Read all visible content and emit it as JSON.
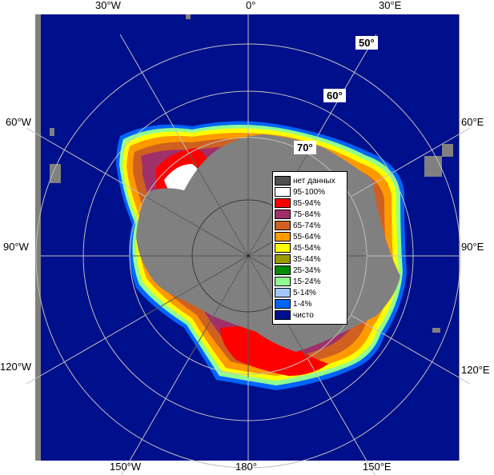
{
  "map": {
    "lon_labels_top": [
      "30°W",
      "0°",
      "30°E"
    ],
    "lon_labels_bottom": [
      "150°W",
      "180°",
      "150°E"
    ],
    "lon_labels_left": [
      "60°W",
      "90°W",
      "120°W"
    ],
    "lon_labels_right": [
      "60°E",
      "90°E",
      "120°E"
    ],
    "lat_labels": [
      "50°",
      "60°",
      "70°"
    ],
    "colors": {
      "ocean": "#000f8c",
      "land_nodata": "#808080",
      "frame": "#808080",
      "grid": "#bfbfbf"
    }
  },
  "legend": {
    "items": [
      {
        "label": "нет данных",
        "color": "#505050"
      },
      {
        "label": "95-100%",
        "color": "#ffffff"
      },
      {
        "label": "85-94%",
        "color": "#ff0000"
      },
      {
        "label": "75-84%",
        "color": "#a0306a"
      },
      {
        "label": "65-74%",
        "color": "#d06020"
      },
      {
        "label": "55-64%",
        "color": "#ff9900"
      },
      {
        "label": "45-54%",
        "color": "#ffff00"
      },
      {
        "label": "35-44%",
        "color": "#9a9a00"
      },
      {
        "label": "25-34%",
        "color": "#008c00"
      },
      {
        "label": "15-24%",
        "color": "#90ff90"
      },
      {
        "label": "5-14%",
        "color": "#a0c8ff"
      },
      {
        "label": "1-4%",
        "color": "#0064ff"
      },
      {
        "label": "чисто",
        "color": "#000f8c"
      }
    ]
  }
}
